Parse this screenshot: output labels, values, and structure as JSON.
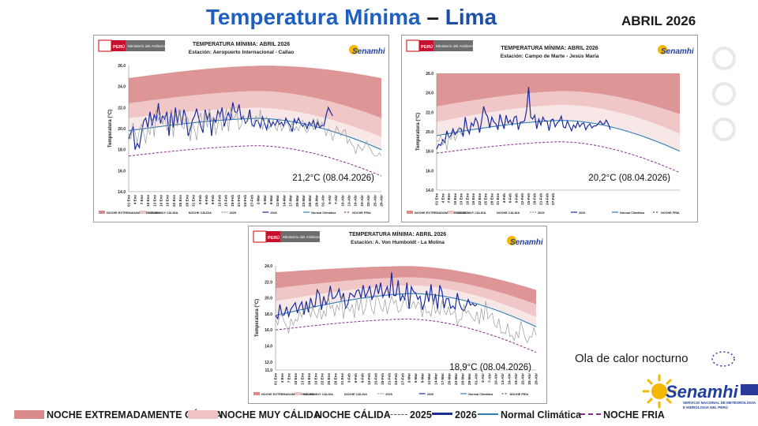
{
  "header": {
    "title_part1": "Temperatura Mínima",
    "title_dash": " – ",
    "title_part2": "Lima",
    "month": "ABRIL 2026"
  },
  "bottom_legend": {
    "extreme_warm": "NOCHE EXTREMADAMENTE CÁLIDA",
    "very_warm": "NOCHE MUY CÁLIDA",
    "warm": "NOCHE CÁLIDA",
    "y2025": "2025",
    "y2026": "2026",
    "normal": "Normal Climática",
    "cold": "NOCHE FRIA"
  },
  "heatwave_label": "Ola de calor nocturno",
  "logo": {
    "name": "Senamhi",
    "subtitle_line1": "SERVICIO NACIONAL DE METEOROLOGÍA",
    "subtitle_line2": "E HIDROLOGÍA DEL PERÚ"
  },
  "colors": {
    "extreme": "#d98a8a",
    "very": "#efc3c3",
    "warm": "#f8e6e6",
    "line2026": "#1a2c9e",
    "line2025": "#9a9a9a",
    "normal": "#2f7fb5",
    "cold": "#8a2a8a"
  },
  "chart_data": [
    {
      "type": "line",
      "title": "TEMPERATURA MÍNIMA:  ABRIL 2026",
      "subtitle": "Estación: Aeropuerto Internacional - Callao",
      "ministry": "Ministerio del Ambiente",
      "peru": "PERÚ",
      "logo": "Senamhi",
      "ylabel": "Temperatura (°C)",
      "ylim": [
        14,
        26
      ],
      "yticks": [
        "14.0",
        "16.0",
        "18.0",
        "20.0",
        "22.0",
        "24.0",
        "26.0"
      ],
      "xticks": [
        "01 Ene",
        "4 Ene",
        "7 Ene",
        "10 Ene",
        "13 Ene",
        "16 Ene",
        "19 Ene",
        "22 Ene",
        "25 Ene",
        "28 Ene",
        "31 Ene",
        "3-Feb",
        "6-Feb",
        "9-Feb",
        "12-Feb",
        "15-Feb",
        "18-Feb",
        "21-Feb",
        "24-Feb",
        "27-Feb",
        "2-Mar",
        "5-Mar",
        "8-Mar",
        "11-Mar",
        "14-Mar",
        "17-Mar",
        "20-Mar",
        "23-Mar",
        "26-Mar",
        "29-Mar",
        "01-Abr",
        "4-Abr",
        "7-Abr",
        "10-Abr",
        "13-Abr",
        "16-Abr",
        "19-Abr",
        "22-Abr",
        "25-Abr",
        "28-Abr"
      ],
      "annotation": "21,2°C (08.04.2026)",
      "legend": [
        "NOCHE EXTREMADAMENTE CÁLIDA",
        "NOCHE MUY CÁLIDA",
        "NOCHE CÁLIDA",
        "2025",
        "2026",
        "Normal Climática",
        "NOCHE FRIA"
      ],
      "n_days": 120,
      "normal_params": [
        19.8,
        21.0,
        18.0
      ],
      "cold_params": [
        17.4,
        18.4,
        15.5
      ],
      "p75_params": [
        21.0,
        22.0,
        19.2
      ],
      "p90_params": [
        22.4,
        23.6,
        21.0
      ],
      "p99_params": [
        24.8,
        26.0,
        24.8
      ],
      "series": [
        {
          "name": "2026",
          "values": [
            19.0,
            19.6,
            20.2,
            18.0,
            18.6,
            18.2,
            19.5,
            20.7,
            21.0,
            20.1,
            21.6,
            20.3,
            21.3,
            20.8,
            22.4,
            20.5,
            21.2,
            20.9,
            21.6,
            19.3,
            21.7,
            20.1,
            22.0,
            20.5,
            21.8,
            20.3,
            21.8,
            21.1,
            19.3,
            19.9,
            20.8,
            21.2,
            21.9,
            21.0,
            20.2,
            19.6,
            21.8,
            20.9,
            21.5,
            19.3,
            21.0,
            20.6,
            21.7,
            21.2,
            22.0,
            20.2,
            21.0,
            21.5,
            20.8,
            22.5,
            21.6,
            21.5,
            22.3,
            20.9,
            21.2,
            20.5,
            20.8,
            21.8,
            20.4,
            20.2,
            20.8,
            20.7,
            20.1,
            21.1,
            20.5,
            19.9,
            20.9,
            20.2,
            20.6,
            20.3,
            20.8,
            20.4,
            20.6,
            20.2,
            21.0,
            20.6,
            20.3,
            19.7,
            20.9,
            20.5,
            21.0,
            20.5,
            20.2,
            20.5,
            20.0,
            20.6,
            20.3,
            20.8,
            20.0,
            20.6,
            20.1,
            20.3,
            20.3,
            21.3,
            22.0,
            21.6,
            21.2
          ]
        },
        {
          "name": "2025",
          "values": [
            19.5,
            19.0,
            20.5,
            19.6,
            18.7,
            19.8,
            20.4,
            19.7,
            18.6,
            20.1,
            19.4,
            21.0,
            19.2,
            21.8,
            20.8,
            21.4,
            20.4,
            21.3,
            19.8,
            20.6,
            21.8,
            19.2,
            21.5,
            20.2,
            21.8,
            20.2,
            20.0,
            21.2,
            20.9,
            18.8,
            20.6,
            19.9,
            18.9,
            20.8,
            21.5,
            19.9,
            21.6,
            20.1,
            21.9,
            20.8,
            21.1,
            19.4,
            20.4,
            21.6,
            19.8,
            20.8,
            21.9,
            19.7,
            22.0,
            20.9,
            21.1,
            21.6,
            19.9,
            20.3,
            21.3,
            20.6,
            20.7,
            21.3,
            20.2,
            20.6,
            21.2,
            20.6,
            21.8,
            19.9,
            20.8,
            21.1,
            20.0,
            20.4,
            20.9,
            20.1,
            19.8,
            21.0,
            19.8,
            20.2,
            20.6,
            20.5,
            19.7,
            20.6,
            19.8,
            20.2,
            19.8,
            20.4,
            20.8,
            19.9,
            19.6,
            20.1,
            20.4,
            19.9,
            20.3,
            20.9,
            20.2,
            20.6,
            20.2,
            19.3,
            20.0,
            19.8,
            18.9,
            19.5,
            20.2,
            19.7,
            19.3,
            19.8,
            19.9,
            18.6,
            19.0,
            18.5,
            18.3,
            17.6,
            18.5,
            18.2,
            17.9,
            18.3,
            18.8,
            18.3,
            18.0,
            17.6,
            17.4,
            17.4,
            17.7,
            17.4
          ]
        }
      ]
    },
    {
      "type": "line",
      "title": "TEMPERATURA MÍNIMA:  ABRIL 2026",
      "subtitle": "Estación: Campo de Marte - Jesús María",
      "ministry": "Ministerio del Ambiente",
      "peru": "PERÚ",
      "logo": "Senamhi",
      "ylabel": "Temperatura (°C)",
      "ylim": [
        14,
        26
      ],
      "yticks": [
        "14.0",
        "16.0",
        "18.0",
        "20.0",
        "22.0",
        "24.0",
        "26.0"
      ],
      "xticks": [
        "01 Ene",
        "4 Ene",
        "7 Ene",
        "10 Ene",
        "13 Ene",
        "16 Ene",
        "19 Ene",
        "22 Ene",
        "25 Ene",
        "28 Ene",
        "31 Ene",
        "3-Feb",
        "6-Feb",
        "9-Feb",
        "12-Feb",
        "15-Feb",
        "18-Feb",
        "21-Feb",
        "24-Feb",
        "27-Feb"
      ],
      "annotation": "20,2°C (08.04.2026)",
      "legend": [
        "NOCHE EXTREMADAMENTE CÁLIDO",
        "NOCHE MUY CÁLIDA",
        "NOCHE CALIDA",
        "2025",
        "2026",
        "Normal Climática",
        "NOCHE FRÍA"
      ],
      "n_days": 120,
      "normal_params": [
        19.6,
        21.2,
        18.0
      ],
      "cold_params": [
        17.8,
        19.0,
        15.8
      ],
      "p75_params": [
        21.0,
        22.8,
        19.8
      ],
      "p90_params": [
        22.6,
        24.2,
        21.8
      ],
      "p99_params": [
        26.0,
        26.0,
        26.0
      ],
      "series": [
        {
          "name": "2026",
          "values": [
            18.2,
            18.7,
            18.6,
            19.2,
            18.9,
            20.1,
            19.4,
            19.6,
            20.3,
            19.7,
            20.0,
            20.4,
            20.3,
            19.5,
            21.5,
            20.3,
            19.8,
            20.9,
            20.6,
            21.4,
            21.0,
            19.9,
            21.1,
            22.6,
            21.9,
            21.5,
            20.4,
            21.5,
            21.0,
            20.8,
            20.2,
            21.8,
            21.0,
            20.3,
            21.7,
            20.9,
            21.2,
            20.7,
            21.5,
            21.6,
            20.2,
            21.0,
            21.0,
            21.1,
            22.2,
            24.6,
            21.5,
            21.3,
            21.7,
            20.3,
            21.3,
            20.7,
            21.5,
            21.1,
            21.1,
            20.1,
            21.2,
            21.3,
            20.5,
            20.9,
            21.1,
            21.6,
            20.5,
            20.4,
            21.1,
            20.6,
            20.1,
            20.7,
            20.4,
            21.0,
            20.5,
            20.8,
            20.9,
            20.2,
            20.6,
            20.8,
            20.4,
            20.6,
            20.6,
            20.8,
            21.1,
            20.8,
            20.8,
            21.2,
            20.8,
            20.2
          ]
        },
        {
          "name": "2025",
          "values": [
            19.1,
            19.0,
            19.7,
            18.6,
            19.4,
            18.1,
            19.5,
            19.2,
            20.1,
            19.1,
            19.6,
            20.5,
            19.7,
            20.3
          ]
        }
      ]
    },
    {
      "type": "line",
      "title": "TEMPERATURA MÍNIMA:  ABRIL 2026",
      "subtitle": "Estación: A. Von Humboldt - La Molina",
      "ministry": "Ministerio del Ambiente",
      "peru": "PERÚ",
      "logo": "Senamhi",
      "ylabel": "Temperatura (°C)",
      "ylim": [
        11,
        24
      ],
      "yticks": [
        "11.0",
        "12.0",
        "14.0",
        "16.0",
        "18.0",
        "20.0",
        "22.0",
        "24.0"
      ],
      "xticks": [
        "01 Ene",
        "4 Ene",
        "7 Ene",
        "10 Ene",
        "13 Ene",
        "16 Ene",
        "19 Ene",
        "22 Ene",
        "25 Ene",
        "28 Ene",
        "31 Ene",
        "3-Feb",
        "6-Feb",
        "9-Feb",
        "12-Feb",
        "15-Feb",
        "18-Feb",
        "21-Feb",
        "24-Feb",
        "27-Feb",
        "2-Mar",
        "5-Mar",
        "8-Mar",
        "11-Mar",
        "14-Mar",
        "17-Mar",
        "20-Mar",
        "23-Mar",
        "26-Mar",
        "29-Mar",
        "01-Abr",
        "4-Abr",
        "7-Abr",
        "10-Abr",
        "13-Abr",
        "16-Abr",
        "19-Abr",
        "22-Abr",
        "25-Abr",
        "28-Abr"
      ],
      "annotation": "18,9°C (08.04.2026)",
      "legend": [
        "NOCHE EXTREMADAMENTE CÁLIDA",
        "NOCHE MUY CÁLIDA",
        "NOCHE CÁLIDA",
        "2025",
        "2026",
        "Normal Climática",
        "NOCHE FRIA"
      ],
      "n_days": 120,
      "normal_params": [
        17.8,
        20.6,
        16.4
      ],
      "cold_params": [
        16.0,
        17.4,
        13.2
      ],
      "p75_params": [
        19.6,
        21.6,
        17.6
      ],
      "p90_params": [
        21.2,
        22.6,
        19.2
      ],
      "p99_params": [
        23.2,
        24.0,
        21.0
      ],
      "series": [
        {
          "name": "2026",
          "values": [
            17.8,
            17.4,
            19.2,
            17.8,
            17.9,
            18.9,
            17.7,
            18.6,
            19.0,
            19.4,
            18.1,
            19.0,
            19.5,
            17.9,
            19.6,
            18.2,
            20.0,
            19.0,
            18.9,
            21.0,
            20.5,
            18.5,
            20.2,
            19.2,
            19.8,
            21.5,
            19.9,
            20.0,
            20.4,
            21.1,
            19.7,
            20.6,
            18.7,
            19.2,
            20.6,
            20.4,
            20.1,
            20.9,
            21.0,
            20.0,
            21.6,
            20.1,
            20.7,
            21.5,
            19.8,
            20.4,
            21.7,
            20.5,
            21.9,
            20.1,
            20.7,
            21.4,
            20.0,
            23.2,
            20.3,
            20.3,
            22.2,
            19.6,
            20.4,
            19.8,
            21.9,
            18.6,
            21.4,
            20.8,
            20.6,
            19.8,
            20.2,
            18.5,
            19.4,
            20.9,
            19.5,
            21.7,
            19.2,
            20.5,
            18.6,
            21.6,
            20.8,
            18.7,
            19.9,
            19.9,
            18.7,
            19.0,
            18.6,
            20.6,
            19.3,
            18.6,
            18.4,
            19.0,
            19.8,
            19.1,
            19.3,
            19.0,
            19.2
          ]
        },
        {
          "name": "2025",
          "values": [
            17.3,
            16.6,
            18.0,
            17.9,
            17.0,
            16.5,
            15.6,
            17.4,
            16.6,
            17.3,
            17.1,
            18.3,
            17.6,
            18.6,
            18.8,
            18.9,
            17.6,
            18.8,
            18.0,
            17.5,
            18.8,
            17.3,
            18.4,
            17.7,
            20.4,
            18.7,
            19.1,
            17.7,
            19.1,
            18.5,
            20.2,
            17.4,
            19.2,
            18.8,
            18.3,
            19.2,
            17.5,
            19.9,
            18.4,
            19.9,
            17.9,
            18.6,
            20.3,
            19.9,
            18.5,
            18.0,
            20.3,
            19.9,
            18.8,
            18.3,
            19.8,
            18.0,
            19.1,
            20.2,
            19.3,
            19.7,
            18.2,
            18.4,
            19.2,
            20.4,
            18.9,
            18.6,
            18.9,
            19.6,
            18.7,
            19.5,
            19.2,
            17.6,
            19.2,
            18.1,
            18.3,
            17.7,
            19.7,
            18.1,
            18.6,
            17.9,
            19.7,
            18.4,
            17.9,
            18.9,
            17.9,
            18.1,
            18.4,
            16.6,
            17.3,
            17.3,
            19.2,
            18.1,
            18.4,
            17.9,
            17.4,
            17.1,
            18.3,
            16.7,
            18.7,
            17.2,
            19.6,
            17.4,
            17.8,
            18.1,
            16.6,
            16.3,
            17.4,
            15.6,
            15.7,
            15.5,
            16.8,
            15.2,
            15.3,
            14.7,
            15.8,
            15.0,
            17.1,
            16.0,
            15.0,
            14.4,
            15.2,
            15.1,
            16.3,
            15.3
          ]
        }
      ]
    }
  ]
}
